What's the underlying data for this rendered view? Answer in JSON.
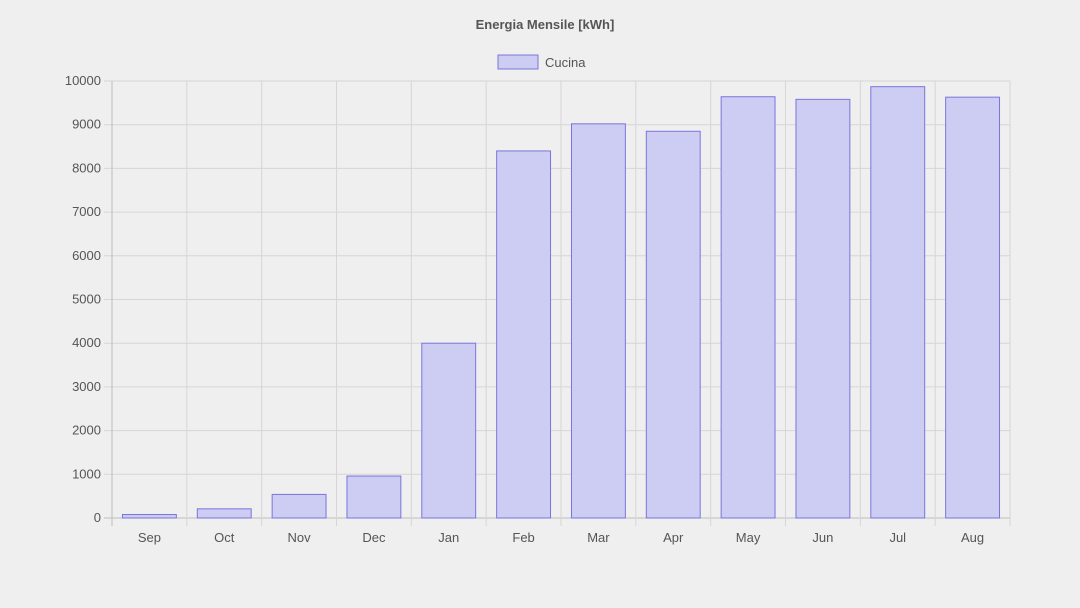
{
  "chart_data": {
    "type": "bar",
    "title": "Energia Mensile [kWh]",
    "categories": [
      "Sep",
      "Oct",
      "Nov",
      "Dec",
      "Jan",
      "Feb",
      "Mar",
      "Apr",
      "May",
      "Jun",
      "Jul",
      "Aug"
    ],
    "series": [
      {
        "name": "Cucina",
        "values": [
          80,
          210,
          540,
          960,
          4000,
          8400,
          9020,
          8850,
          9640,
          9580,
          9870,
          9630
        ]
      }
    ],
    "ylim": [
      0,
      10000
    ],
    "yticks": [
      0,
      1000,
      2000,
      3000,
      4000,
      5000,
      6000,
      7000,
      8000,
      9000,
      10000
    ],
    "grid": true,
    "legend_position": "top",
    "colors": {
      "bar_fill": "#cdcdf3",
      "bar_stroke": "#7b74dc",
      "grid": "#d6d6d6",
      "text": "#555555",
      "background": "#efefef"
    }
  }
}
